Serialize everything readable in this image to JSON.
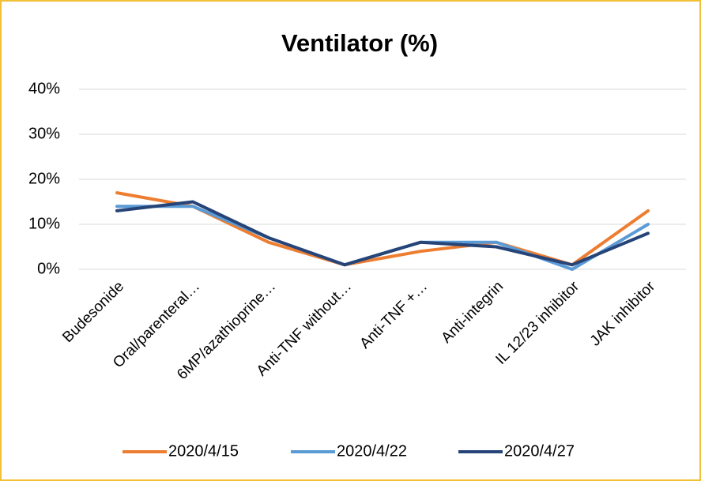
{
  "chart_data": {
    "type": "line",
    "title": "Ventilator (%)",
    "categories": [
      "Budesonide",
      "Oral/parenteral…",
      "6MP/azathioprine…",
      "Anti-TNF without…",
      "Anti-TNF +…",
      "Anti-integrin",
      "IL 12/23 inhibitor",
      "JAK inhibitor"
    ],
    "series": [
      {
        "name": "2020/4/15",
        "color": "#ed7d31",
        "values": [
          17,
          14,
          6,
          1,
          4,
          6,
          1,
          13
        ]
      },
      {
        "name": "2020/4/22",
        "color": "#5b9bd5",
        "values": [
          14,
          14,
          7,
          1,
          6,
          6,
          0,
          10
        ]
      },
      {
        "name": "2020/4/27",
        "color": "#264478",
        "values": [
          13,
          15,
          7,
          1,
          6,
          5,
          1,
          8
        ]
      }
    ],
    "ylim": [
      0,
      40
    ],
    "yticks": [
      {
        "value": 0,
        "label": "0%"
      },
      {
        "value": 10,
        "label": "10%"
      },
      {
        "value": 20,
        "label": "20%"
      },
      {
        "value": 30,
        "label": "30%"
      },
      {
        "value": 40,
        "label": "40%"
      }
    ],
    "grid": true,
    "legend": "bottom"
  }
}
